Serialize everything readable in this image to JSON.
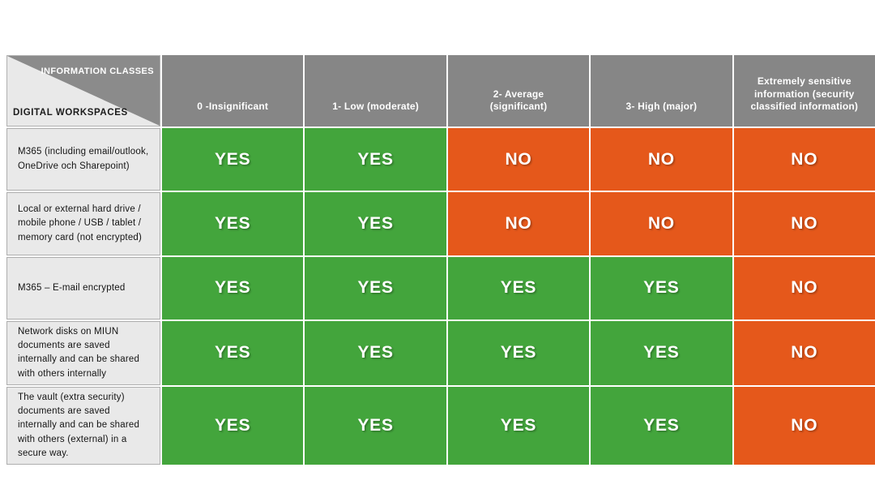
{
  "chart_data": {
    "type": "table",
    "corner": {
      "top_label": "INFORMATION CLASSES",
      "bottom_label": "DIGITAL WORKSPACES"
    },
    "columns": [
      "0 -Insignificant",
      "1- Low (moderate)",
      "2- Average (significant)",
      "3- High (major)",
      "Extremely sensitive information (security classified information)"
    ],
    "rows": [
      {
        "label": "M365 (including email/outlook, OneDrive och Sharepoint)",
        "values": [
          "YES",
          "YES",
          "NO",
          "NO",
          "NO"
        ]
      },
      {
        "label": "Local or external hard drive / mobile phone / USB / tablet / memory card (not encrypted)",
        "values": [
          "YES",
          "YES",
          "NO",
          "NO",
          "NO"
        ]
      },
      {
        "label": "M365 – E-mail encrypted",
        "values": [
          "YES",
          "YES",
          "YES",
          "YES",
          "NO"
        ]
      },
      {
        "label": "Network disks on MIUN documents are saved internally and can be shared with others internally",
        "values": [
          "YES",
          "YES",
          "YES",
          "YES",
          "NO"
        ]
      },
      {
        "label": "The vault (extra security) documents are saved internally and can be shared with others (external) in a secure way.",
        "values": [
          "YES",
          "YES",
          "YES",
          "YES",
          "NO"
        ]
      }
    ],
    "colors": {
      "yes_green": "#43a53c",
      "no_orange": "#e5581b",
      "header_gray": "#868686",
      "label_gray": "#e9e9e9"
    }
  }
}
